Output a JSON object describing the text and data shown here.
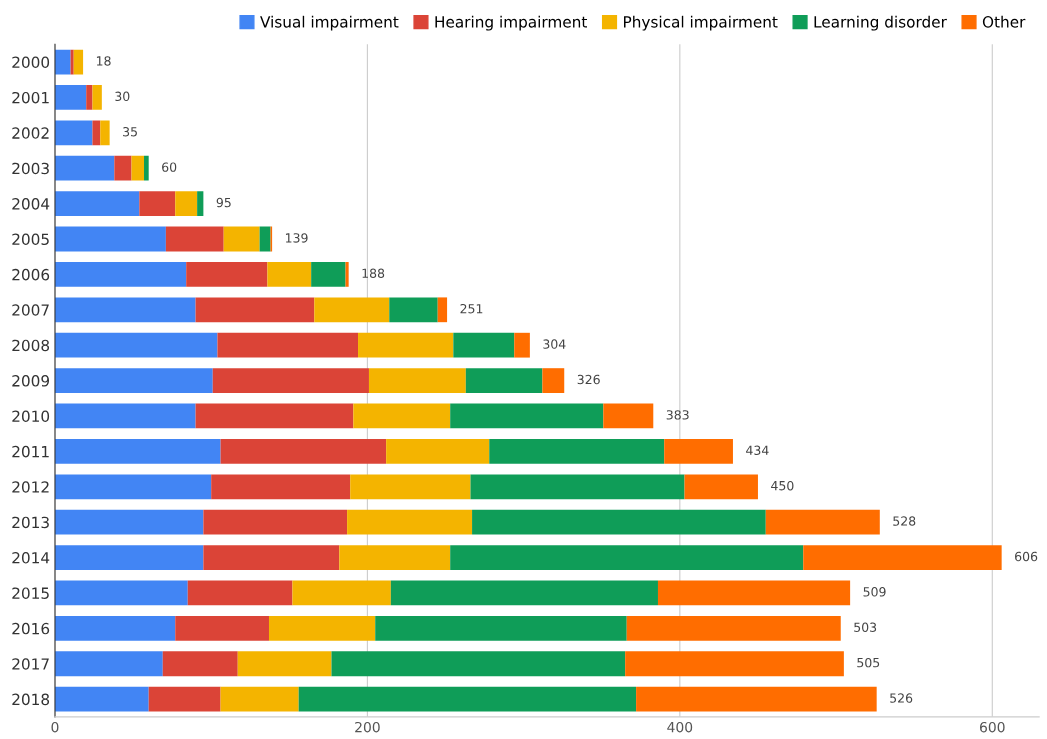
{
  "chart_data": {
    "type": "bar",
    "orientation": "horizontal",
    "stacked": true,
    "categories": [
      "2000",
      "2001",
      "2002",
      "2003",
      "2004",
      "2005",
      "2006",
      "2007",
      "2008",
      "2009",
      "2010",
      "2011",
      "2012",
      "2013",
      "2014",
      "2015",
      "2016",
      "2017",
      "2018"
    ],
    "series": [
      {
        "name": "Visual impairment",
        "color": "#4285f4",
        "values": [
          10,
          20,
          24,
          38,
          54,
          71,
          84,
          90,
          104,
          101,
          90,
          106,
          100,
          95,
          95,
          85,
          77,
          69,
          60
        ]
      },
      {
        "name": "Hearing impairment",
        "color": "#db4437",
        "values": [
          2,
          4,
          5,
          11,
          23,
          37,
          52,
          76,
          90,
          100,
          101,
          106,
          89,
          92,
          87,
          67,
          60,
          48,
          46
        ]
      },
      {
        "name": "Physical impairment",
        "color": "#f4b400",
        "values": [
          6,
          6,
          6,
          8,
          14,
          23,
          28,
          48,
          61,
          62,
          62,
          66,
          77,
          80,
          71,
          63,
          68,
          60,
          50
        ]
      },
      {
        "name": "Learning disorder",
        "color": "#0f9d58",
        "values": [
          0,
          0,
          0,
          3,
          4,
          7,
          22,
          31,
          39,
          49,
          98,
          112,
          137,
          188,
          226,
          171,
          161,
          188,
          216
        ]
      },
      {
        "name": "Other",
        "color": "#ff6d00",
        "values": [
          0,
          0,
          0,
          0,
          0,
          1,
          2,
          6,
          10,
          14,
          32,
          44,
          47,
          73,
          127,
          123,
          137,
          140,
          154
        ]
      }
    ],
    "totals": [
      "18",
      "30",
      "35",
      "60",
      "95",
      "139",
      "188",
      "251",
      "304",
      "326",
      "383",
      "434",
      "450",
      "528",
      "606",
      "509",
      "503",
      "505",
      "526"
    ],
    "xlim": [
      0,
      630
    ],
    "xticks": [
      0,
      200,
      400,
      600
    ],
    "grid": "x",
    "legend": "top right"
  }
}
